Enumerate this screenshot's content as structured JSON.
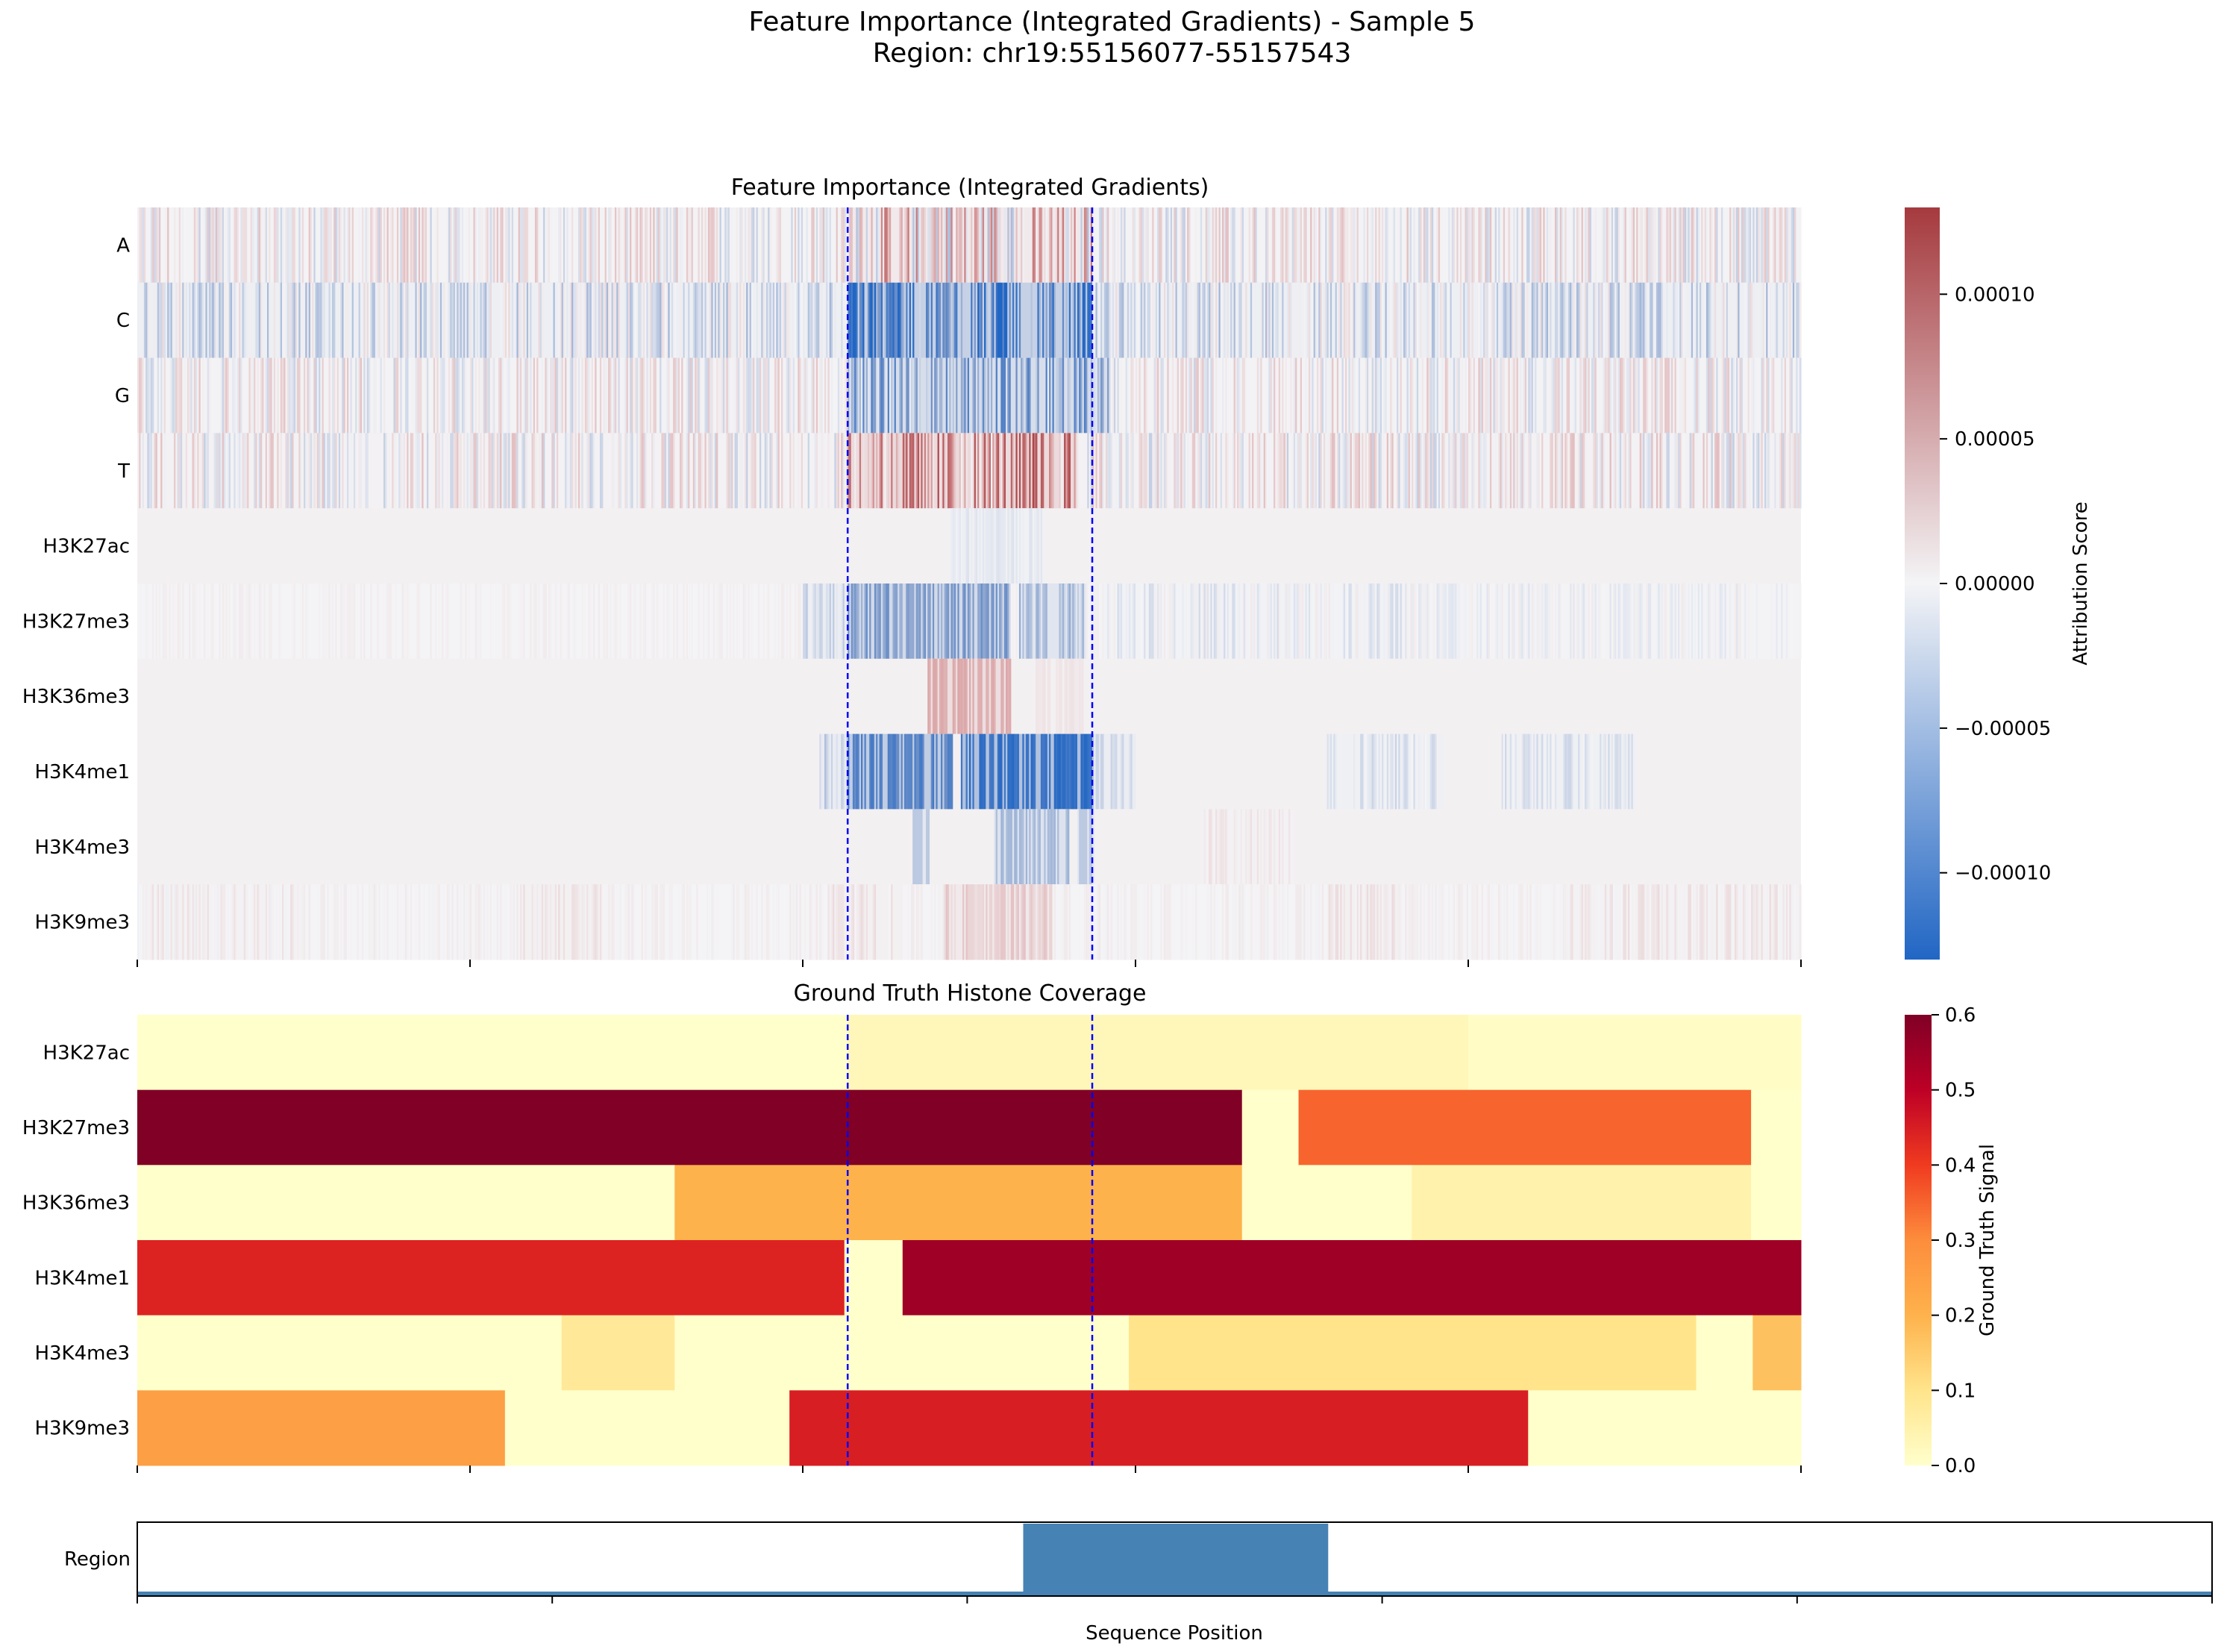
{
  "figure": {
    "suptitle_line1": "Feature Importance (Integrated Gradients) - Sample 5",
    "suptitle_line2": "Region: chr19:55156077-55157543"
  },
  "chart_data": [
    {
      "type": "heatmap",
      "title": "Feature Importance (Integrated Gradients)",
      "rows": [
        "A",
        "C",
        "G",
        "T",
        "H3K27ac",
        "H3K27me3",
        "H3K36me3",
        "H3K4me1",
        "H3K4me3",
        "H3K9me3"
      ],
      "x_range": [
        0,
        1000
      ],
      "colormap": "blue-white-red (diverging)",
      "colorbar": {
        "label": "Attribution Score",
        "range": [
          -0.00013,
          0.00013
        ],
        "ticks": [
          -0.0001,
          -5e-05,
          0,
          5e-05,
          0.0001
        ],
        "tick_labels": [
          "−0.00010",
          "−0.00005",
          "0.00000",
          "0.00005",
          "0.00010"
        ]
      },
      "highlight_lines_x": [
        427,
        574
      ],
      "row_patterns": [
        {
          "row": "A",
          "base_mean": 5e-06,
          "noise": 2e-05,
          "segments": [
            {
              "x": [
                427,
                574
              ],
              "mean": 2.5e-05,
              "noise": 4e-05
            }
          ]
        },
        {
          "row": "C",
          "base_mean": -1.2e-05,
          "noise": 2e-05,
          "segments": [
            {
              "x": [
                427,
                574
              ],
              "mean": -8e-05,
              "noise": 4e-05
            }
          ]
        },
        {
          "row": "G",
          "base_mean": 5e-06,
          "noise": 1.8e-05,
          "segments": [
            {
              "x": [
                427,
                585
              ],
              "mean": -5e-05,
              "noise": 3e-05
            }
          ]
        },
        {
          "row": "T",
          "base_mean": 6e-06,
          "noise": 2e-05,
          "segments": [
            {
              "x": [
                427,
                565
              ],
              "mean": 6e-05,
              "noise": 4e-05
            }
          ]
        },
        {
          "row": "H3K27ac",
          "base_mean": 3e-06,
          "noise": 0.0,
          "segments": [
            {
              "x": [
                488,
                545
              ],
              "mean": -8e-06,
              "noise": 3e-06
            }
          ]
        },
        {
          "row": "H3K27me3",
          "base_mean": 3e-06,
          "noise": 2e-06,
          "segments": [
            {
              "x": [
                400,
                427
              ],
              "mean": -1.5e-05,
              "noise": 1e-05
            },
            {
              "x": [
                427,
                525
              ],
              "mean": -6e-05,
              "noise": 1e-05
            },
            {
              "x": [
                530,
                570
              ],
              "mean": -3.5e-05,
              "noise": 1e-05
            },
            {
              "x": [
                580,
                760
              ],
              "mean": -5e-06,
              "noise": 8e-06
            },
            {
              "x": [
                760,
                1000
              ],
              "mean": -2e-06,
              "noise": 6e-06
            }
          ]
        },
        {
          "row": "H3K36me3",
          "base_mean": 3e-06,
          "noise": 0.0,
          "segments": [
            {
              "x": [
                475,
                525
              ],
              "mean": 5e-05,
              "noise": 4e-06
            },
            {
              "x": [
                540,
                570
              ],
              "mean": 1e-05,
              "noise": 2e-06
            }
          ]
        },
        {
          "row": "H3K4me1",
          "base_mean": 3e-06,
          "noise": 0.0,
          "segments": [
            {
              "x": [
                410,
                427
              ],
              "mean": -2e-05,
              "noise": 1e-05
            },
            {
              "x": [
                427,
                490
              ],
              "mean": -9e-05,
              "noise": 1e-05
            },
            {
              "x": [
                495,
                575
              ],
              "mean": -0.000115,
              "noise": 8e-06
            },
            {
              "x": [
                575,
                600
              ],
              "mean": -1.5e-05,
              "noise": 8e-06
            },
            {
              "x": [
                715,
                785
              ],
              "mean": -1e-05,
              "noise": 8e-06
            },
            {
              "x": [
                820,
                900
              ],
              "mean": -1e-05,
              "noise": 8e-06
            }
          ]
        },
        {
          "row": "H3K4me3",
          "base_mean": 3e-06,
          "noise": 0.0,
          "segments": [
            {
              "x": [
                466,
                476
              ],
              "mean": -3e-05,
              "noise": 0.0
            },
            {
              "x": [
                515,
                560
              ],
              "mean": -4e-05,
              "noise": 4e-06
            },
            {
              "x": [
                565,
                575
              ],
              "mean": -3e-05,
              "noise": 0.0
            },
            {
              "x": [
                640,
                695
              ],
              "mean": 8e-06,
              "noise": 4e-06
            }
          ]
        },
        {
          "row": "H3K9me3",
          "base_mean": 3e-06,
          "noise": 3e-06,
          "segments": [
            {
              "x": [
                0,
                100
              ],
              "mean": 6e-06,
              "noise": 6e-06
            },
            {
              "x": [
                230,
                280
              ],
              "mean": 1e-05,
              "noise": 6e-06
            },
            {
              "x": [
                415,
                460
              ],
              "mean": 1e-05,
              "noise": 6e-06
            },
            {
              "x": [
                485,
                550
              ],
              "mean": 2.5e-05,
              "noise": 6e-06
            },
            {
              "x": [
                715,
                760
              ],
              "mean": 1e-05,
              "noise": 6e-06
            },
            {
              "x": [
                860,
                1000
              ],
              "mean": 8e-06,
              "noise": 6e-06
            }
          ]
        }
      ]
    },
    {
      "type": "heatmap",
      "title": "Ground Truth Histone Coverage",
      "rows": [
        "H3K27ac",
        "H3K27me3",
        "H3K36me3",
        "H3K4me1",
        "H3K4me3",
        "H3K9me3"
      ],
      "x_range": [
        0,
        1000
      ],
      "colormap": "yellow-orange-red (sequential)",
      "colorbar": {
        "label": "Ground Truth Signal",
        "range": [
          0,
          0.6
        ],
        "ticks": [
          0.0,
          0.1,
          0.2,
          0.3,
          0.4,
          0.5,
          0.6
        ],
        "tick_labels": [
          "0.0",
          "0.1",
          "0.2",
          "0.3",
          "0.4",
          "0.5",
          "0.6"
        ]
      },
      "highlight_lines_x": [
        427,
        574
      ],
      "segments": [
        {
          "row": "H3K27ac",
          "parts": [
            {
              "x": [
                0,
                427
              ],
              "v": 0.0
            },
            {
              "x": [
                427,
                800
              ],
              "v": 0.03
            },
            {
              "x": [
                800,
                1000
              ],
              "v": 0.01
            }
          ]
        },
        {
          "row": "H3K27me3",
          "parts": [
            {
              "x": [
                0,
                664
              ],
              "v": 0.6
            },
            {
              "x": [
                664,
                698
              ],
              "v": 0.0
            },
            {
              "x": [
                698,
                970
              ],
              "v": 0.35
            },
            {
              "x": [
                970,
                1000
              ],
              "v": 0.0
            }
          ]
        },
        {
          "row": "H3K36me3",
          "parts": [
            {
              "x": [
                0,
                323
              ],
              "v": 0.0
            },
            {
              "x": [
                323,
                664
              ],
              "v": 0.2
            },
            {
              "x": [
                664,
                766
              ],
              "v": 0.0
            },
            {
              "x": [
                766,
                970
              ],
              "v": 0.05
            },
            {
              "x": [
                970,
                1000
              ],
              "v": 0.0
            }
          ]
        },
        {
          "row": "H3K4me1",
          "parts": [
            {
              "x": [
                0,
                425
              ],
              "v": 0.44
            },
            {
              "x": [
                425,
                460
              ],
              "v": 0.0
            },
            {
              "x": [
                460,
                1000
              ],
              "v": 0.55
            }
          ]
        },
        {
          "row": "H3K4me3",
          "parts": [
            {
              "x": [
                0,
                255
              ],
              "v": 0.0
            },
            {
              "x": [
                255,
                323
              ],
              "v": 0.08
            },
            {
              "x": [
                323,
                596
              ],
              "v": 0.0
            },
            {
              "x": [
                596,
                937
              ],
              "v": 0.1
            },
            {
              "x": [
                937,
                971
              ],
              "v": 0.0
            },
            {
              "x": [
                971,
                1000
              ],
              "v": 0.17
            }
          ]
        },
        {
          "row": "H3K9me3",
          "parts": [
            {
              "x": [
                0,
                221
              ],
              "v": 0.25
            },
            {
              "x": [
                221,
                392
              ],
              "v": 0.0
            },
            {
              "x": [
                392,
                836
              ],
              "v": 0.45
            },
            {
              "x": [
                836,
                1000
              ],
              "v": 0.0
            }
          ]
        }
      ]
    },
    {
      "type": "bar",
      "ylabel": "Region",
      "xlabel": "Sequence Position",
      "x_range": [
        0,
        1000
      ],
      "highlight": {
        "x": [
          427,
          574
        ],
        "color": "#4682b4"
      }
    }
  ]
}
